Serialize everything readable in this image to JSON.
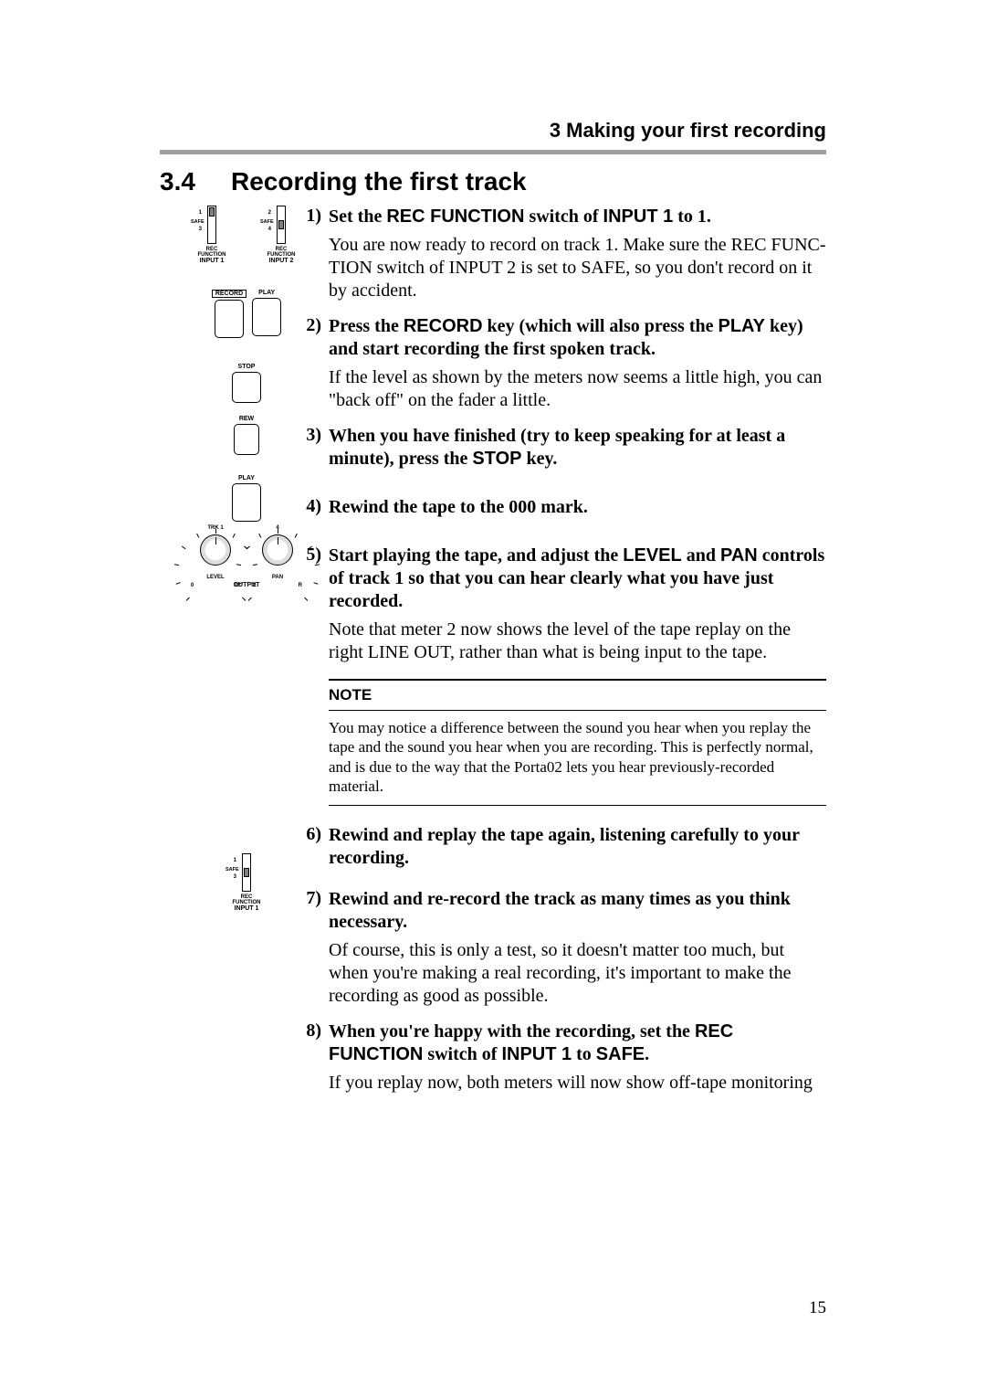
{
  "colors": {
    "text": "#000000",
    "bg": "#ffffff",
    "rule_gray": "#9f9f9f",
    "knob_gray": "#808080"
  },
  "typography": {
    "serif": "Times New Roman",
    "sans": "Arial",
    "body_size": 20,
    "note_size": 17,
    "h_title_size": 28,
    "chapter_size": 22
  },
  "header": {
    "chapter": "3 Making your first recording"
  },
  "section": {
    "number": "3.4",
    "title": "Recording the first track"
  },
  "diagrams": {
    "rec_func": {
      "labels": {
        "rec_function": "REC FUNCTION",
        "input1": "INPUT 1",
        "input2": "INPUT 2",
        "safe": "SAFE"
      },
      "rows": [
        "1",
        "SAFE",
        "3"
      ],
      "rows2": [
        "2",
        "SAFE",
        "4"
      ]
    },
    "transport": {
      "record": "RECORD",
      "play": "PLAY",
      "stop": "STOP",
      "rew": "REW"
    },
    "knobs": {
      "trk": "TRK",
      "trk1": "1",
      "trk4": "4",
      "level": "LEVEL",
      "pan": "PAN",
      "output": "OUTPUT",
      "scale_level_l": "0",
      "scale_level_r": "10",
      "scale_pan_l": "L",
      "scale_pan_r": "R"
    }
  },
  "steps": {
    "s1": {
      "num": "1)",
      "bold_a": "Set the ",
      "sans_a": "REC FUNCTION",
      "bold_b": " switch of ",
      "sans_b": "INPUT 1",
      "bold_c": " to 1.",
      "p1a": "You are now ready to record on track 1. Make sure the ",
      "p1s1": "REC FUNC-TION",
      "p1b": " switch of ",
      "p1s2": "INPUT 2",
      "p1c": " is set to ",
      "p1s3": "SAFE",
      "p1d": ", so you don't record on it by accident."
    },
    "s2": {
      "num": "2)",
      "bold_a": "Press the ",
      "sans_a": "RECORD",
      "bold_b": " key (which will also press the ",
      "sans_b": "PLAY",
      "bold_c": " key) and start recording the first spoken track.",
      "p1": "If the level as shown by the meters now seems a little high, you can \"back off\" on the fader a little."
    },
    "s3": {
      "num": "3)",
      "bold_a": "When you have finished (try to keep speaking for at least a minute), press the ",
      "sans_a": "STOP",
      "bold_b": " key."
    },
    "s4": {
      "num": "4)",
      "bold_a": "Rewind the tape to the 000 mark."
    },
    "s5": {
      "num": "5)",
      "bold_a": "Start playing the tape, and adjust the ",
      "sans_a": "LEVEL",
      "bold_b": " and ",
      "sans_b": "PAN",
      "bold_c": " controls of track 1 so that you can hear clearly what you have just recorded.",
      "p1a": "Note that meter 2 now shows the level of the tape replay on the right ",
      "p1s1": "LINE OUT",
      "p1b": ", rather than what is being input to the tape."
    },
    "s6": {
      "num": "6)",
      "bold_a": "Rewind and replay the tape again, listening carefully to your recording."
    },
    "s7": {
      "num": "7)",
      "bold_a": "Rewind and re-record the track as many times as you think necessary.",
      "p1": "Of course, this is only a test, so it doesn't matter too much, but when you're making a real recording, it's important to make the recording as good as possible."
    },
    "s8": {
      "num": "8)",
      "bold_a": "When you're happy with the recording, set the ",
      "sans_a": "REC FUNCTION",
      "bold_b": " switch of ",
      "sans_b": "INPUT 1",
      "bold_c": " to ",
      "sans_c": "SAFE",
      "bold_d": ".",
      "p1": "If you replay now, both meters will now show off-tape monitoring"
    }
  },
  "note": {
    "title": "NOTE",
    "text": "You may notice a difference between the sound you hear when you replay the tape and the sound you hear when you are recording. This is perfectly normal, and is due to the way that the Porta02 lets you hear previously-recorded material."
  },
  "page_number": "15"
}
